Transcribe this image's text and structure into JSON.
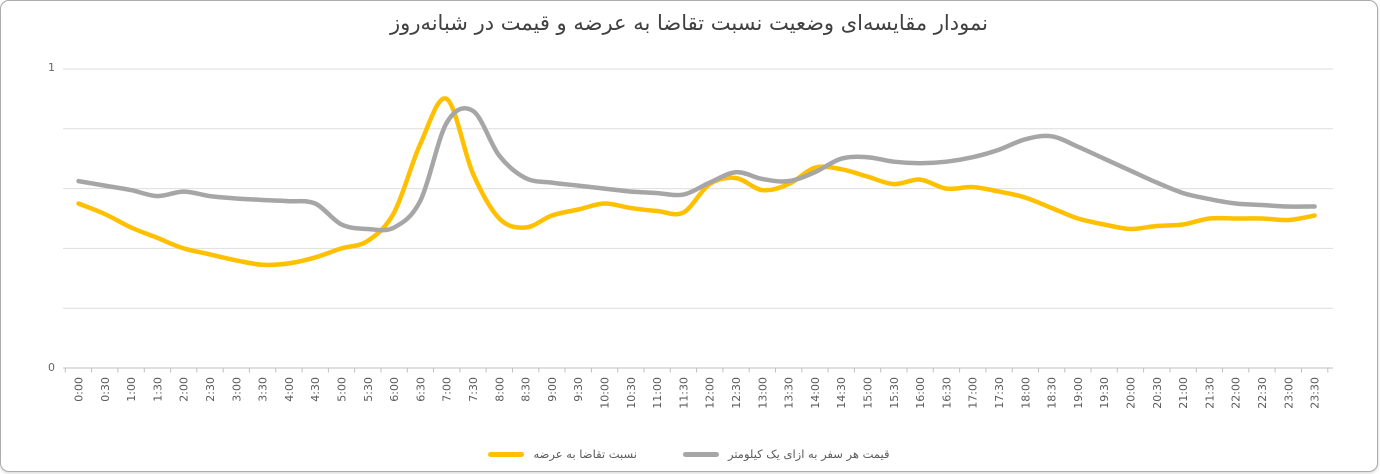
{
  "chart_data": {
    "type": "line",
    "smooth": true,
    "title": "نمودار مقایسه‌ای وضعیت نسبت تقاضا به عرضه و قیمت در شبانه‌روز",
    "xlabel": "",
    "ylabel": "",
    "ylim": [
      0,
      1
    ],
    "y_tick_labels": [
      "0",
      "1"
    ],
    "grid": "horizontal",
    "gridline_values": [
      0,
      0.2,
      0.4,
      0.6,
      0.8,
      1.0
    ],
    "legend_position": "bottom",
    "x_labels_rotation": 90,
    "categories": [
      "0:00",
      "0:30",
      "1:00",
      "1:30",
      "2:00",
      "2:30",
      "3:00",
      "3:30",
      "4:00",
      "4:30",
      "5:00",
      "5:30",
      "6:00",
      "6:30",
      "7:00",
      "7:30",
      "8:00",
      "8:30",
      "9:00",
      "9:30",
      "10:00",
      "10:30",
      "11:00",
      "11:30",
      "12:00",
      "12:30",
      "13:00",
      "13:30",
      "14:00",
      "14:30",
      "15:00",
      "15:30",
      "16:00",
      "16:30",
      "17:00",
      "17:30",
      "18:00",
      "18:30",
      "19:00",
      "19:30",
      "20:00",
      "20:30",
      "21:00",
      "21:30",
      "22:00",
      "22:30",
      "23:00",
      "23:30"
    ],
    "series": [
      {
        "name": "نسبت تقاضا به عرضه",
        "color": "#FFC000",
        "values": [
          0.55,
          0.515,
          0.47,
          0.435,
          0.4,
          0.38,
          0.36,
          0.345,
          0.35,
          0.37,
          0.4,
          0.425,
          0.52,
          0.75,
          0.9,
          0.65,
          0.5,
          0.47,
          0.51,
          0.53,
          0.55,
          0.535,
          0.525,
          0.52,
          0.615,
          0.635,
          0.595,
          0.615,
          0.67,
          0.665,
          0.64,
          0.615,
          0.63,
          0.6,
          0.605,
          0.59,
          0.57,
          0.535,
          0.5,
          0.48,
          0.465,
          0.475,
          0.48,
          0.5,
          0.5,
          0.5,
          0.495,
          0.51
        ]
      },
      {
        "name": "قیمت هر سفر به ازای یک کیلومتر",
        "color": "#A6A6A6",
        "values": [
          0.625,
          0.61,
          0.595,
          0.575,
          0.59,
          0.575,
          0.567,
          0.562,
          0.558,
          0.55,
          0.48,
          0.465,
          0.47,
          0.56,
          0.82,
          0.86,
          0.71,
          0.635,
          0.62,
          0.61,
          0.6,
          0.59,
          0.585,
          0.58,
          0.62,
          0.655,
          0.632,
          0.625,
          0.655,
          0.7,
          0.705,
          0.69,
          0.685,
          0.69,
          0.705,
          0.73,
          0.765,
          0.775,
          0.74,
          0.7,
          0.66,
          0.62,
          0.585,
          0.565,
          0.55,
          0.545,
          0.54,
          0.54
        ]
      }
    ]
  },
  "legend": {
    "items": [
      {
        "label": "نسبت تقاضا به عرضه",
        "color": "#FFC000"
      },
      {
        "label": "قیمت هر سفر به ازای یک کیلومتر",
        "color": "#A6A6A6"
      }
    ]
  },
  "colors": {
    "background": "#ffffff",
    "card_border": "#acacac",
    "gridline": "#dedede",
    "axis_line": "#bfbfbf",
    "tick": "#bfbfbf",
    "axis_text": "#595959",
    "title_text": "#404040",
    "series_demand_supply": "#FFC000",
    "series_price_per_km": "#A6A6A6"
  }
}
